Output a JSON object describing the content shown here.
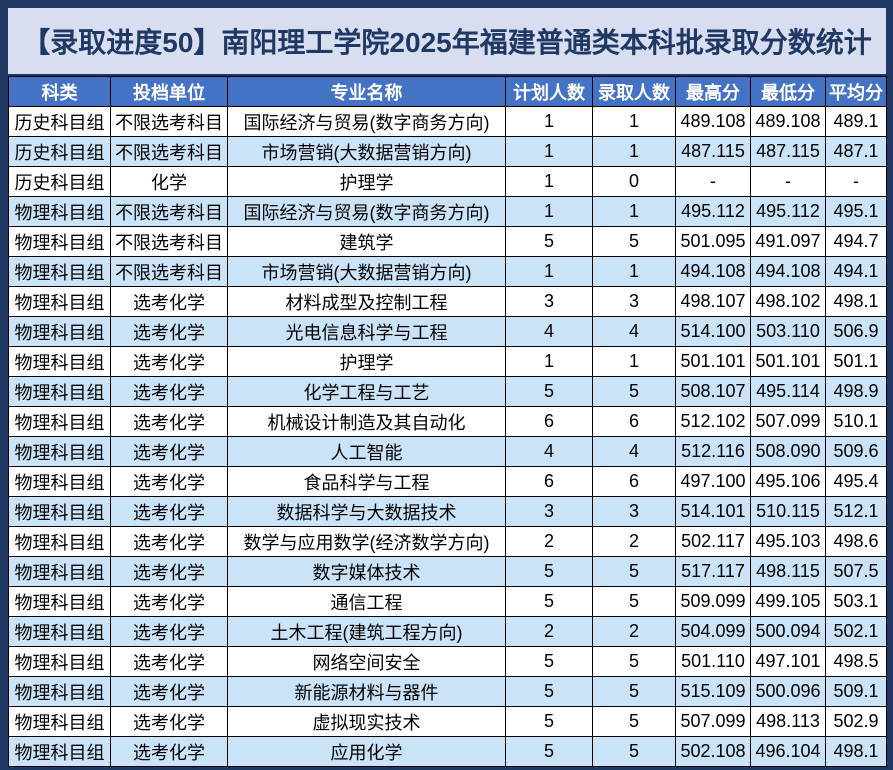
{
  "chart_data": {
    "type": "table",
    "title": "【录取进度50】南阳理工学院2025年福建普通类本科批录取分数统计",
    "columns": [
      "科类",
      "投档单位",
      "专业名称",
      "计划人数",
      "录取人数",
      "最高分",
      "最低分",
      "平均分"
    ],
    "rows": [
      [
        "历史科目组",
        "不限选考科目",
        "国际经济与贸易(数字商务方向)",
        "1",
        "1",
        "489.108",
        "489.108",
        "489.1"
      ],
      [
        "历史科目组",
        "不限选考科目",
        "市场营销(大数据营销方向)",
        "1",
        "1",
        "487.115",
        "487.115",
        "487.1"
      ],
      [
        "历史科目组",
        "化学",
        "护理学",
        "1",
        "0",
        "-",
        "-",
        "-"
      ],
      [
        "物理科目组",
        "不限选考科目",
        "国际经济与贸易(数字商务方向)",
        "1",
        "1",
        "495.112",
        "495.112",
        "495.1"
      ],
      [
        "物理科目组",
        "不限选考科目",
        "建筑学",
        "5",
        "5",
        "501.095",
        "491.097",
        "494.7"
      ],
      [
        "物理科目组",
        "不限选考科目",
        "市场营销(大数据营销方向)",
        "1",
        "1",
        "494.108",
        "494.108",
        "494.1"
      ],
      [
        "物理科目组",
        "选考化学",
        "材料成型及控制工程",
        "3",
        "3",
        "498.107",
        "498.102",
        "498.1"
      ],
      [
        "物理科目组",
        "选考化学",
        "光电信息科学与工程",
        "4",
        "4",
        "514.100",
        "503.110",
        "506.9"
      ],
      [
        "物理科目组",
        "选考化学",
        "护理学",
        "1",
        "1",
        "501.101",
        "501.101",
        "501.1"
      ],
      [
        "物理科目组",
        "选考化学",
        "化学工程与工艺",
        "5",
        "5",
        "508.107",
        "495.114",
        "498.9"
      ],
      [
        "物理科目组",
        "选考化学",
        "机械设计制造及其自动化",
        "6",
        "6",
        "512.102",
        "507.099",
        "510.1"
      ],
      [
        "物理科目组",
        "选考化学",
        "人工智能",
        "4",
        "4",
        "512.116",
        "508.090",
        "509.6"
      ],
      [
        "物理科目组",
        "选考化学",
        "食品科学与工程",
        "6",
        "6",
        "497.100",
        "495.106",
        "495.4"
      ],
      [
        "物理科目组",
        "选考化学",
        "数据科学与大数据技术",
        "3",
        "3",
        "514.101",
        "510.115",
        "512.1"
      ],
      [
        "物理科目组",
        "选考化学",
        "数学与应用数学(经济数学方向)",
        "2",
        "2",
        "502.117",
        "495.103",
        "498.6"
      ],
      [
        "物理科目组",
        "选考化学",
        "数字媒体技术",
        "5",
        "5",
        "517.117",
        "498.115",
        "507.5"
      ],
      [
        "物理科目组",
        "选考化学",
        "通信工程",
        "5",
        "5",
        "509.099",
        "499.105",
        "503.1"
      ],
      [
        "物理科目组",
        "选考化学",
        "土木工程(建筑工程方向)",
        "2",
        "2",
        "504.099",
        "500.094",
        "502.1"
      ],
      [
        "物理科目组",
        "选考化学",
        "网络空间安全",
        "5",
        "5",
        "501.110",
        "497.101",
        "498.5"
      ],
      [
        "物理科目组",
        "选考化学",
        "新能源材料与器件",
        "5",
        "5",
        "515.109",
        "500.096",
        "509.1"
      ],
      [
        "物理科目组",
        "选考化学",
        "虚拟现实技术",
        "5",
        "5",
        "507.099",
        "498.113",
        "502.9"
      ],
      [
        "物理科目组",
        "选考化学",
        "应用化学",
        "5",
        "5",
        "502.108",
        "496.104",
        "498.1"
      ]
    ],
    "layout_hints": {
      "row_striping": "odd rows white, even rows light blue",
      "all_cells_centered": true
    }
  },
  "colors": {
    "frame": "#1F3864",
    "title_bg": "#D9DDF0",
    "title_text": "#1F3864",
    "header_bg": "#4472C4",
    "header_text": "#FFFFFF",
    "row_bg": "#FFFFFF",
    "row_alt_bg": "#CAE3F6",
    "grid": "#000000",
    "body_text": "#000000"
  }
}
